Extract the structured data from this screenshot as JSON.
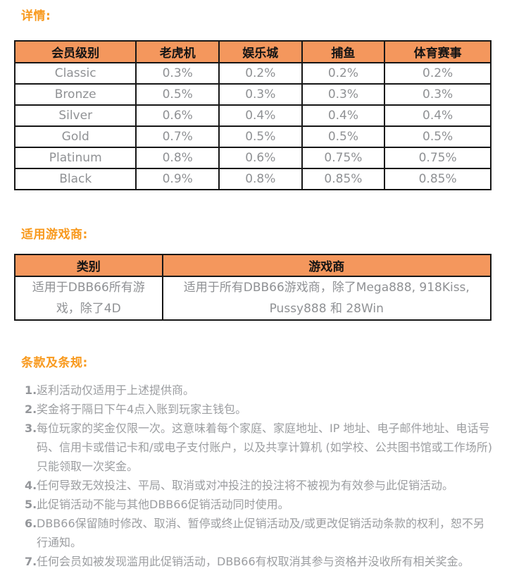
{
  "theme": {
    "accent_orange": "#F8991D",
    "table_header_bg": "#F4975D",
    "table_border": "#161616",
    "table_text_gray": "#8F9194",
    "terms_text_gray": "#9B9DA0",
    "background": "#ffffff"
  },
  "details": {
    "heading": "详情:",
    "table": {
      "headers": [
        "会员级别",
        "老虎机",
        "娱乐城",
        "捕鱼",
        "体育赛事"
      ],
      "rows": [
        [
          "Classic",
          "0.3%",
          "0.2%",
          "0.2%",
          "0.2%"
        ],
        [
          "Bronze",
          "0.5%",
          "0.3%",
          "0.3%",
          "0.3%"
        ],
        [
          "Silver",
          "0.6%",
          "0.4%",
          "0.4%",
          "0.4%"
        ],
        [
          "Gold",
          "0.7%",
          "0.5%",
          "0.5%",
          "0.5%"
        ],
        [
          "Platinum",
          "0.8%",
          "0.6%",
          "0.75%",
          "0.75%"
        ],
        [
          "Black",
          "0.9%",
          "0.8%",
          "0.85%",
          "0.85%"
        ]
      ]
    }
  },
  "providers": {
    "heading": "适用游戏商:",
    "table": {
      "headers": [
        "类别",
        "游戏商"
      ],
      "row": {
        "category": "适用于DBB66所有游戏，除了4D",
        "provider": "适用于所有DBB66游戏商，除了Mega888, 918Kiss, Pussy888 和 28Win"
      }
    }
  },
  "terms": {
    "heading": "条款及条规:",
    "items": [
      {
        "num": "1.",
        "text": "返利活动仅适用于上述提供商。"
      },
      {
        "num": "2.",
        "text": "奖金将于隔日下午4点入账到玩家主钱包。"
      },
      {
        "num": "3.",
        "text": "每位玩家的奖金仅限一次。这意味着每个家庭、家庭地址、IP 地址、电子邮件地址、电话号码、信用卡或借记卡和/或电子支付账户，以及共享计算机 (如学校、公共图书馆或工作场所) 只能领取一次奖金。"
      },
      {
        "num": "4.",
        "text": "任何导致无效投注、平局、取消或对冲投注的投注将不被视为有效参与此促销活动。"
      },
      {
        "num": "5.",
        "text": "此促销活动不能与其他DBB66促销活动同时使用。"
      },
      {
        "num": "6.",
        "text": "DBB66保留随时修改、取消、暂停或终止促销活动及/或更改促销活动条款的权利，恕不另行通知。"
      },
      {
        "num": "7.",
        "text": "任何会员如被发现滥用此促销活动，DBB66有权取消其参与资格并没收所有相关奖金。"
      }
    ]
  }
}
